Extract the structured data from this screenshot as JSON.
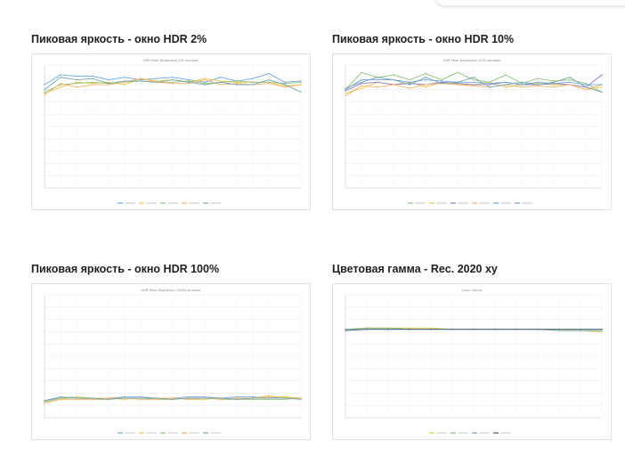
{
  "page": {
    "sections": [
      {
        "title": "Пиковая яркость - окно HDR 2%"
      },
      {
        "title": "Пиковая яркость - окно HDR 10%"
      },
      {
        "title": "Пиковая яркость - окно HDR 100%"
      },
      {
        "title": "Цветовая гамма - Rec. 2020 xy"
      }
    ]
  },
  "chart_data": [
    {
      "type": "line",
      "title": "HDR Peak Brightness (2% window)",
      "grid": true,
      "legend": "bottom",
      "x": [
        0,
        1,
        2,
        3,
        4,
        5,
        6,
        7,
        8,
        9,
        10,
        11,
        12,
        13,
        14,
        15,
        16
      ],
      "ylim": [
        0,
        100
      ],
      "series": [
        {
          "color": "#6fa8dc",
          "values": [
            84,
            92,
            91,
            91,
            88,
            90,
            88,
            89,
            90,
            88,
            86,
            90,
            87,
            89,
            93,
            86,
            87
          ]
        },
        {
          "color": "#e6c84a",
          "values": [
            77,
            82,
            86,
            85,
            86,
            84,
            89,
            87,
            88,
            86,
            89,
            87,
            86,
            86,
            86,
            83,
            84
          ]
        },
        {
          "color": "#93c47d",
          "values": [
            78,
            84,
            85,
            86,
            85,
            86,
            87,
            86,
            86,
            87,
            85,
            86,
            87,
            86,
            86,
            85,
            86
          ]
        },
        {
          "color": "#f6b26b",
          "values": [
            76,
            85,
            82,
            84,
            84,
            86,
            89,
            86,
            85,
            85,
            88,
            84,
            85,
            84,
            85,
            82,
            84
          ]
        },
        {
          "color": "#76a5af",
          "values": [
            80,
            90,
            88,
            89,
            85,
            87,
            87,
            86,
            88,
            86,
            84,
            86,
            84,
            84,
            88,
            84,
            78
          ]
        }
      ]
    },
    {
      "type": "line",
      "title": "HDR Peak Brightness (10% window)",
      "grid": true,
      "legend": "bottom",
      "x": [
        0,
        1,
        2,
        3,
        4,
        5,
        6,
        7,
        8,
        9,
        10,
        11,
        12,
        13,
        14,
        15,
        16
      ],
      "ylim": [
        0,
        100
      ],
      "series": [
        {
          "color": "#93c47d",
          "values": [
            80,
            94,
            90,
            92,
            88,
            93,
            88,
            94,
            88,
            86,
            92,
            85,
            89,
            87,
            88,
            85,
            78
          ]
        },
        {
          "color": "#e6c84a",
          "values": [
            77,
            81,
            86,
            84,
            86,
            82,
            86,
            84,
            84,
            86,
            82,
            84,
            85,
            84,
            84,
            80,
            82
          ]
        },
        {
          "color": "#8e7cc3",
          "values": [
            79,
            85,
            86,
            84,
            85,
            84,
            86,
            85,
            84,
            84,
            86,
            84,
            84,
            85,
            84,
            82,
            92
          ]
        },
        {
          "color": "#f6b26b",
          "values": [
            75,
            83,
            82,
            84,
            81,
            84,
            85,
            84,
            83,
            82,
            84,
            82,
            83,
            82,
            84,
            80,
            84
          ]
        },
        {
          "color": "#6fa8dc",
          "values": [
            80,
            88,
            88,
            88,
            86,
            88,
            87,
            86,
            86,
            85,
            86,
            84,
            86,
            85,
            86,
            84,
            84
          ]
        },
        {
          "color": "#76a5af",
          "values": [
            81,
            86,
            90,
            88,
            84,
            90,
            85,
            86,
            90,
            82,
            84,
            86,
            84,
            86,
            90,
            82,
            78
          ]
        }
      ]
    },
    {
      "type": "line",
      "title": "HDR Peak Brightness (100% window)",
      "grid": true,
      "legend": "bottom",
      "x": [
        0,
        1,
        2,
        3,
        4,
        5,
        6,
        7,
        8,
        9,
        10,
        11,
        12,
        13,
        14,
        15,
        16
      ],
      "ylim": [
        0,
        100
      ],
      "series": [
        {
          "color": "#6fa8dc",
          "values": [
            14,
            16,
            17,
            16,
            16,
            17,
            17,
            16,
            16,
            17,
            17,
            16,
            17,
            17,
            16,
            17,
            16
          ]
        },
        {
          "color": "#e6c84a",
          "values": [
            12,
            15,
            17,
            16,
            16,
            15,
            16,
            16,
            16,
            15,
            15,
            16,
            15,
            16,
            17,
            17,
            16
          ]
        },
        {
          "color": "#93c47d",
          "values": [
            13,
            16,
            16,
            15,
            15,
            16,
            16,
            15,
            15,
            16,
            16,
            15,
            15,
            15,
            15,
            15,
            16
          ]
        },
        {
          "color": "#f6b26b",
          "values": [
            12,
            15,
            15,
            15,
            16,
            16,
            15,
            15,
            16,
            15,
            16,
            15,
            16,
            16,
            18,
            16,
            16
          ]
        },
        {
          "color": "#76a5af",
          "values": [
            14,
            17,
            16,
            16,
            15,
            16,
            16,
            16,
            15,
            16,
            16,
            16,
            15,
            16,
            16,
            16,
            15
          ]
        }
      ]
    },
    {
      "type": "line",
      "title": "Color Gamut",
      "grid": true,
      "legend": "bottom",
      "x": [
        0,
        1,
        2,
        3,
        4,
        5,
        6,
        7,
        8,
        9,
        10,
        11,
        12
      ],
      "ylim": [
        0,
        100
      ],
      "series": [
        {
          "color": "#e6c84a",
          "values": [
            72,
            73,
            73,
            73,
            73,
            72,
            72,
            72,
            72,
            72,
            72,
            71,
            70
          ]
        },
        {
          "color": "#93c47d",
          "values": [
            72,
            73,
            73,
            72,
            72,
            72,
            72,
            72,
            72,
            72,
            72,
            72,
            72
          ]
        },
        {
          "color": "#76a5af",
          "values": [
            72,
            72,
            72,
            72,
            72,
            72,
            72,
            72,
            72,
            72,
            71,
            71,
            71
          ]
        },
        {
          "color": "#3d5a80",
          "values": [
            71,
            72,
            72,
            72,
            72,
            72,
            72,
            72,
            72,
            72,
            72,
            72,
            72
          ]
        }
      ]
    }
  ]
}
